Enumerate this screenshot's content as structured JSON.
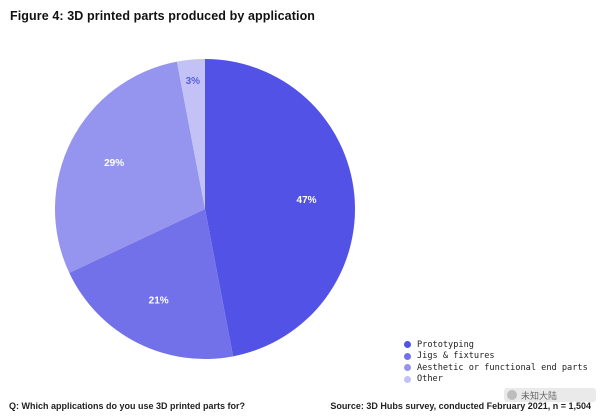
{
  "chart_data": {
    "type": "pie",
    "title": "Figure 4: 3D printed parts produced by application",
    "categories": [
      "Prototyping",
      "Jigs & fixtures",
      "Aesthetic or functional end parts",
      "Other"
    ],
    "values": [
      47,
      21,
      29,
      3
    ],
    "value_labels": [
      "47%",
      "21%",
      "29%",
      "3%"
    ],
    "colors": [
      "#5352e6",
      "#7271ea",
      "#9594ef",
      "#c3c2f7"
    ],
    "legend_position": "bottom-right"
  },
  "footer": {
    "question": "Q: Which applications do you use 3D printed parts for?",
    "source": "Source: 3D Hubs survey, conducted February 2021, n = 1,504"
  },
  "watermark": {
    "text": "未知大陆"
  }
}
